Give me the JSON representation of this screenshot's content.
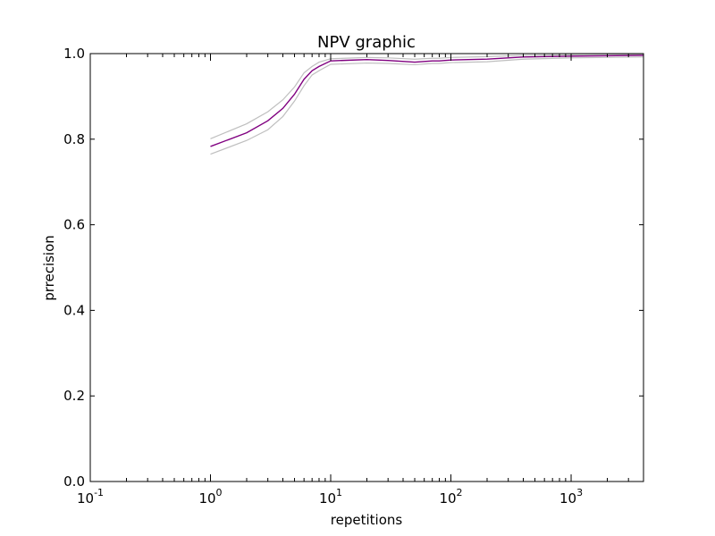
{
  "chart_data": {
    "type": "line",
    "title": "NPV graphic",
    "xlabel": "repetitions",
    "ylabel": "prrecision",
    "xscale": "log",
    "xlim": [
      0.1,
      4000
    ],
    "ylim": [
      0.0,
      1.0
    ],
    "grid": false,
    "legend": "none",
    "x_ticks": [
      {
        "base": "10",
        "exp": "-1"
      },
      {
        "base": "10",
        "exp": "0"
      },
      {
        "base": "10",
        "exp": "1"
      },
      {
        "base": "10",
        "exp": "2"
      },
      {
        "base": "10",
        "exp": "3"
      }
    ],
    "y_ticks": [
      "0.0",
      "0.2",
      "0.4",
      "0.6",
      "0.8",
      "1.0"
    ],
    "x": [
      1,
      2,
      3,
      4,
      5,
      6,
      7,
      8,
      10,
      20,
      30,
      50,
      70,
      80,
      100,
      200,
      400,
      1000,
      2000,
      4000
    ],
    "series": [
      {
        "role": "mean",
        "color": "#800080",
        "values": [
          0.783,
          0.815,
          0.843,
          0.872,
          0.905,
          0.94,
          0.96,
          0.97,
          0.983,
          0.986,
          0.984,
          0.98,
          0.983,
          0.983,
          0.985,
          0.987,
          0.992,
          0.994,
          0.995,
          0.996
        ]
      },
      {
        "role": "upper",
        "color": "#bfbfbf",
        "values": [
          0.801,
          0.836,
          0.864,
          0.892,
          0.922,
          0.955,
          0.97,
          0.98,
          0.988,
          0.991,
          0.99,
          0.987,
          0.989,
          0.989,
          0.991,
          0.993,
          0.996,
          0.997,
          0.998,
          0.998
        ]
      },
      {
        "role": "lower",
        "color": "#bfbfbf",
        "values": [
          0.765,
          0.797,
          0.822,
          0.853,
          0.889,
          0.925,
          0.95,
          0.96,
          0.975,
          0.978,
          0.977,
          0.974,
          0.977,
          0.977,
          0.979,
          0.981,
          0.987,
          0.99,
          0.991,
          0.992
        ]
      }
    ]
  }
}
